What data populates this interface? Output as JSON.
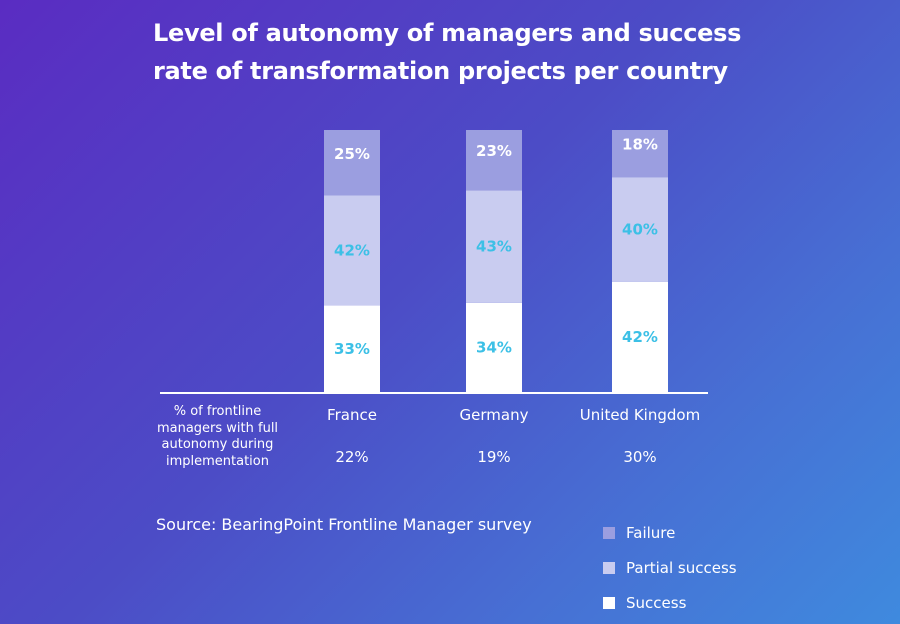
{
  "title": "Level of autonomy of managers and success rate of transformation projects per country",
  "row_label": "% of frontline managers with full autonomy during implementation",
  "source": "Source: BearingPoint Frontline Manager survey",
  "autonomy": [
    "22%",
    "19%",
    "30%"
  ],
  "colors": {
    "failure": "#9b9ee0",
    "partial": "#c9ccf0",
    "success": "#ffffff",
    "label_light": "#3cc0e6"
  },
  "chart_data": {
    "type": "bar",
    "stacked": true,
    "title": "Level of autonomy of managers and success rate of transformation projects per country",
    "categories": [
      "France",
      "Germany",
      "United Kingdom"
    ],
    "series": [
      {
        "name": "Success",
        "values": [
          33,
          34,
          42
        ]
      },
      {
        "name": "Partial success",
        "values": [
          42,
          43,
          40
        ]
      },
      {
        "name": "Failure",
        "values": [
          25,
          23,
          18
        ]
      }
    ],
    "ylim": [
      0,
      100
    ],
    "grid": false,
    "legend": "bottom-right"
  }
}
